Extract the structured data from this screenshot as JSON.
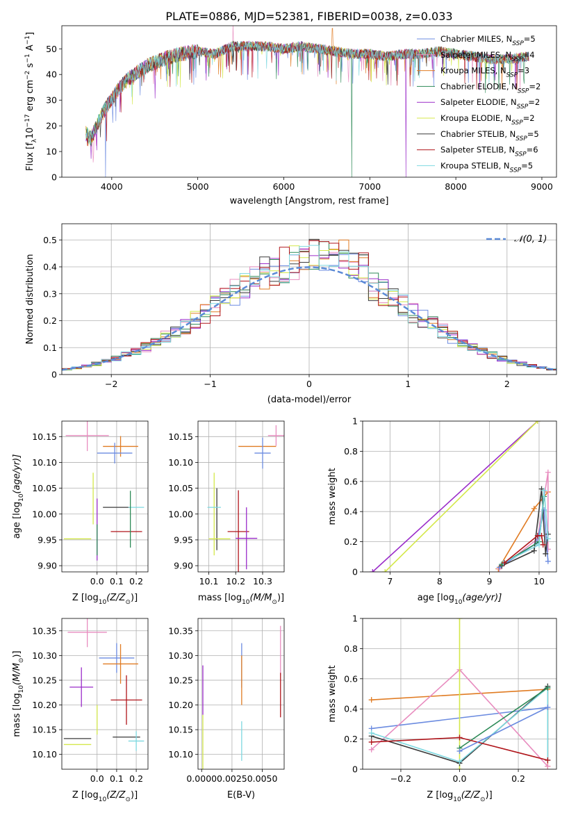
{
  "figure_title": "PLATE=0886, MJD=52381, FIBERID=0038, z=0.033",
  "colors": {
    "chabrier_miles": "#6b8be0",
    "salpeter_miles": "#e88cbf",
    "kroupa_miles": "#e07b22",
    "chabrier_elodie": "#2d8a57",
    "salpeter_elodie": "#9a2bc9",
    "kroupa_elodie": "#d4e84a",
    "chabrier_stelib": "#3a3a3a",
    "salpeter_stelib": "#b0151b",
    "kroupa_stelib": "#7dd8e0",
    "normal": "#5b8ad6",
    "grid": "#b0b0b0"
  },
  "chart_data": [
    {
      "id": "spectrum",
      "type": "line",
      "title": "PLATE=0886, MJD=52381, FIBERID=0038, z=0.033",
      "xlabel": "wavelength [Angstrom, rest frame]",
      "ylabel_main": "Flux [f",
      "ylabel_sub": "λ",
      "ylabel_rest": "10",
      "ylabel_exp1": "−17",
      "ylabel_mid": " erg cm",
      "ylabel_exp2": "−2",
      "ylabel_mid2": " s",
      "ylabel_exp3": "−1",
      "ylabel_end": " A",
      "ylabel_exp4": "−1",
      "ylabel_close": "]",
      "xlim": [
        3420,
        9170
      ],
      "ylim": [
        0,
        59
      ],
      "xticks": [
        4000,
        5000,
        6000,
        7000,
        8000,
        9000
      ],
      "yticks": [
        0,
        10,
        20,
        30,
        40,
        50
      ],
      "grid": false,
      "legend_position": "upper right",
      "continuum": [
        [
          3700,
          17
        ],
        [
          3760,
          15
        ],
        [
          3850,
          22
        ],
        [
          3950,
          28
        ],
        [
          4050,
          33
        ],
        [
          4150,
          37
        ],
        [
          4300,
          41
        ],
        [
          4450,
          44
        ],
        [
          4600,
          46
        ],
        [
          4800,
          48
        ],
        [
          5000,
          49
        ],
        [
          5200,
          48
        ],
        [
          5400,
          51
        ],
        [
          5600,
          51
        ],
        [
          5800,
          51
        ],
        [
          6000,
          50
        ],
        [
          6200,
          51
        ],
        [
          6400,
          50
        ],
        [
          6600,
          49
        ],
        [
          6800,
          48
        ],
        [
          7000,
          48
        ],
        [
          7200,
          47
        ],
        [
          7400,
          48
        ],
        [
          7600,
          48
        ],
        [
          7800,
          49
        ],
        [
          8000,
          48
        ],
        [
          8200,
          47
        ],
        [
          8400,
          46
        ],
        [
          8600,
          46
        ],
        [
          8850,
          47
        ]
      ],
      "spikes": [
        [
          3930,
          0
        ],
        [
          5410,
          60
        ],
        [
          6565,
          58
        ],
        [
          6790,
          0
        ],
        [
          7420,
          0
        ]
      ],
      "legend": [
        {
          "key": "chabrier_miles",
          "label": "Chabrier MILES, N",
          "sub": "SSP",
          "val": "=5"
        },
        {
          "key": "salpeter_miles",
          "label": "Salpeter MILES, N",
          "sub": "SSP",
          "val": "=4"
        },
        {
          "key": "kroupa_miles",
          "label": "Kroupa MILES, N",
          "sub": "SSP",
          "val": "=3"
        },
        {
          "key": "chabrier_elodie",
          "label": "Chabrier ELODIE, N",
          "sub": "SSP",
          "val": "=2"
        },
        {
          "key": "salpeter_elodie",
          "label": "Salpeter ELODIE, N",
          "sub": "SSP",
          "val": "=2"
        },
        {
          "key": "kroupa_elodie",
          "label": "Kroupa ELODIE, N",
          "sub": "SSP",
          "val": "=2"
        },
        {
          "key": "chabrier_stelib",
          "label": "Chabrier STELIB, N",
          "sub": "SSP",
          "val": "=5"
        },
        {
          "key": "salpeter_stelib",
          "label": "Salpeter STELIB, N",
          "sub": "SSP",
          "val": "=6"
        },
        {
          "key": "kroupa_stelib",
          "label": "Kroupa STELIB, N",
          "sub": "SSP",
          "val": "=5"
        }
      ]
    },
    {
      "id": "residuals",
      "type": "line",
      "xlabel": "(data-model)/error",
      "ylabel": "Normed distribution",
      "xlim": [
        -2.5,
        2.5
      ],
      "ylim": [
        0,
        0.56
      ],
      "xticks": [
        -2,
        -1,
        0,
        1,
        2
      ],
      "yticks": [
        0.0,
        0.1,
        0.2,
        0.3,
        0.4,
        0.5
      ],
      "grid": true,
      "legend_label": "𝒩(0, 1)",
      "legend_position": "upper right",
      "bin_width": 0.1,
      "bin_start": -2.5,
      "histogram_base": [
        0.02,
        0.025,
        0.03,
        0.035,
        0.04,
        0.045,
        0.05,
        0.06,
        0.07,
        0.08,
        0.09,
        0.1,
        0.11,
        0.12,
        0.14,
        0.16,
        0.18,
        0.2,
        0.22,
        0.25,
        0.28,
        0.3,
        0.32,
        0.34,
        0.36,
        0.38,
        0.4,
        0.42,
        0.43,
        0.44,
        0.45,
        0.46,
        0.45,
        0.44,
        0.42,
        0.4,
        0.38,
        0.36,
        0.34,
        0.32,
        0.3,
        0.28,
        0.26,
        0.24,
        0.22,
        0.2,
        0.18,
        0.16,
        0.14,
        0.12
      ],
      "histogram_tail": [
        0.1,
        0.08,
        0.065,
        0.05,
        0.04,
        0.035,
        0.03,
        0.025,
        0.02,
        0.02,
        0.02,
        0.02,
        0.02,
        0.02,
        0.02,
        0.02,
        0.02,
        0.02,
        0.02,
        0.02,
        0.02,
        0.02,
        0.02,
        0.02,
        0.02,
        0.02,
        0.02,
        0.02,
        0.02,
        0.02,
        0.02,
        0.02,
        0.02,
        0.02,
        0.02,
        0.02,
        0.02,
        0.02,
        0.02,
        0.02,
        0.02,
        0.02,
        0.02,
        0.02,
        0.02,
        0.02,
        0.02,
        0.02,
        0.02,
        0.02
      ]
    },
    {
      "id": "age_vs_Z",
      "type": "scatter",
      "xlabel": "Z [log",
      "xlabel_sub": "10",
      "xlabel_end": "(Z/Z",
      "xlabel_sun": "⊙",
      "xlabel_close": ")]",
      "ylabel": "age  [log",
      "ylabel_sub": "10",
      "ylabel_end": "(age/yr)]",
      "xlim": [
        -0.18,
        0.26
      ],
      "ylim": [
        9.888,
        10.18
      ],
      "xticks": [
        0.0,
        0.1,
        0.2
      ],
      "xticklabels": [
        "0.0",
        "0.1",
        "0.2"
      ],
      "yticks": [
        9.9,
        9.95,
        10.0,
        10.05,
        10.1,
        10.15
      ],
      "yticklabels": [
        "9.90",
        "9.95",
        "10.00",
        "10.05",
        "10.10",
        "10.15"
      ],
      "grid": true,
      "points": [
        {
          "key": "salpeter_miles",
          "x": -0.05,
          "xe": 0.11,
          "y": 10.152,
          "ye": 0.03
        },
        {
          "key": "kroupa_miles",
          "x": 0.12,
          "xe": 0.09,
          "y": 10.131,
          "ye": 0.02
        },
        {
          "key": "chabrier_miles",
          "x": 0.09,
          "xe": 0.09,
          "y": 10.118,
          "ye": 0.02
        },
        {
          "key": "kroupa_elodie",
          "x": -0.02,
          "xe": 0.0,
          "y": 10.03,
          "ye": 0.05
        },
        {
          "key": "salpeter_elodie",
          "x": 0.0,
          "xe": 0.0,
          "y": 9.97,
          "ye": 0.06
        },
        {
          "key": "chabrier_stelib",
          "x": 0.1,
          "xe": 0.07,
          "y": 10.013,
          "ye": 0.0
        },
        {
          "key": "kroupa_stelib",
          "x": 0.2,
          "xe": 0.04,
          "y": 10.013,
          "ye": 0.0
        },
        {
          "key": "salpeter_stelib",
          "x": 0.15,
          "xe": 0.08,
          "y": 9.966,
          "ye": 0.0
        },
        {
          "key": "chabrier_elodie",
          "x": 0.17,
          "xe": 0.0,
          "y": 9.99,
          "ye": 0.055
        },
        {
          "key": "kroupa_elodie",
          "x": -0.1,
          "xe": 0.07,
          "y": 9.952,
          "ye": 0.0
        },
        {
          "key": "chabrier_elodie",
          "x": 0.0,
          "xe": 0.0,
          "y": 9.95,
          "ye": 0.03
        }
      ]
    },
    {
      "id": "age_vs_mass",
      "type": "scatter",
      "xlabel": "mass [log",
      "xlabel_sub": "10",
      "xlabel_end": "(M/M",
      "xlabel_sun": "⊙",
      "xlabel_close": ")]",
      "xlim": [
        10.06,
        10.38
      ],
      "ylim": [
        9.888,
        10.18
      ],
      "xticks": [
        10.1,
        10.2,
        10.3
      ],
      "xticklabels": [
        "10.1",
        "10.2",
        "10.3"
      ],
      "yticks": [
        9.9,
        9.95,
        10.0,
        10.05,
        10.1,
        10.15
      ],
      "yticklabels": [
        "9.90",
        "9.95",
        "10.00",
        "10.05",
        "10.10",
        "10.15"
      ],
      "grid": true,
      "points": [
        {
          "key": "salpeter_miles",
          "x": 10.35,
          "xe": 0.03,
          "y": 10.152,
          "ye": 0.02
        },
        {
          "key": "kroupa_miles",
          "x": 10.28,
          "xe": 0.07,
          "y": 10.131,
          "ye": 0.0
        },
        {
          "key": "chabrier_miles",
          "x": 10.3,
          "xe": 0.03,
          "y": 10.118,
          "ye": 0.03
        },
        {
          "key": "kroupa_elodie",
          "x": 10.12,
          "xe": 0.0,
          "y": 10.0,
          "ye": 0.08
        },
        {
          "key": "chabrier_stelib",
          "x": 10.13,
          "xe": 0.0,
          "y": 9.99,
          "ye": 0.06
        },
        {
          "key": "kroupa_stelib",
          "x": 10.12,
          "xe": 0.025,
          "y": 10.013,
          "ye": 0.0
        },
        {
          "key": "salpeter_stelib",
          "x": 10.21,
          "xe": 0.04,
          "y": 9.966,
          "ye": 0.08
        },
        {
          "key": "salpeter_elodie",
          "x": 10.24,
          "xe": 0.04,
          "y": 9.953,
          "ye": 0.06
        },
        {
          "key": "kroupa_elodie",
          "x": 10.14,
          "xe": 0.04,
          "y": 9.952,
          "ye": 0.0
        }
      ]
    },
    {
      "id": "massweight_vs_age",
      "type": "line",
      "xlabel": "age  [log",
      "xlabel_sub": "10",
      "xlabel_end": "(age/yr)]",
      "ylabel": "mass weight",
      "xlim": [
        6.45,
        10.35
      ],
      "ylim": [
        0,
        1
      ],
      "xticks": [
        7,
        8,
        9,
        10
      ],
      "yticks": [
        0.0,
        0.2,
        0.4,
        0.6,
        0.8,
        1.0
      ],
      "grid": true,
      "series": [
        {
          "key": "salpeter_elodie",
          "x": [
            6.65,
            9.97
          ],
          "y": [
            0,
            1.0
          ]
        },
        {
          "key": "kroupa_elodie",
          "x": [
            6.9,
            9.97
          ],
          "y": [
            0,
            1.0
          ]
        },
        {
          "key": "kroupa_miles",
          "x": [
            9.18,
            9.9,
            10.18
          ],
          "y": [
            0.02,
            0.42,
            0.53
          ]
        },
        {
          "key": "salpeter_miles",
          "x": [
            9.2,
            9.97,
            10.18,
            10.18
          ],
          "y": [
            0.02,
            0.22,
            0.66,
            0.15
          ]
        },
        {
          "key": "chabrier_miles",
          "x": [
            9.2,
            9.95,
            10.1,
            10.18
          ],
          "y": [
            0.03,
            0.19,
            0.41,
            0.07
          ]
        },
        {
          "key": "chabrier_stelib",
          "x": [
            9.25,
            9.9,
            10.05,
            10.13,
            10.18
          ],
          "y": [
            0.04,
            0.14,
            0.55,
            0.12,
            0.25
          ]
        },
        {
          "key": "chabrier_elodie",
          "x": [
            9.25,
            10.0,
            10.1
          ],
          "y": [
            0.05,
            0.2,
            0.5
          ]
        },
        {
          "key": "kroupa_stelib",
          "x": [
            9.28,
            10.0,
            10.1,
            10.18
          ],
          "y": [
            0.06,
            0.18,
            0.54,
            0.22
          ]
        },
        {
          "key": "salpeter_stelib",
          "x": [
            9.3,
            9.97,
            10.05,
            10.08
          ],
          "y": [
            0.06,
            0.24,
            0.24,
            0.18
          ]
        }
      ]
    },
    {
      "id": "mass_vs_Z",
      "type": "scatter",
      "xlabel": "Z [log",
      "xlabel_sub": "10",
      "xlabel_end": "(Z/Z",
      "xlabel_sun": "⊙",
      "xlabel_close": ")]",
      "ylabel": "mass [log",
      "ylabel_sub": "10",
      "ylabel_end": "(M/M",
      "ylabel_sun": "⊙",
      "ylabel_close": ")]",
      "xlim": [
        -0.18,
        0.26
      ],
      "ylim": [
        10.07,
        10.375
      ],
      "xticks": [
        0.0,
        0.1,
        0.2
      ],
      "xticklabels": [
        "0.0",
        "0.1",
        "0.2"
      ],
      "yticks": [
        10.1,
        10.15,
        10.2,
        10.25,
        10.3,
        10.35
      ],
      "yticklabels": [
        "10.10",
        "10.15",
        "10.20",
        "10.25",
        "10.30",
        "10.35"
      ],
      "grid": true,
      "points": [
        {
          "key": "salpeter_miles",
          "x": -0.05,
          "xe": 0.1,
          "y": 10.347,
          "ye": 0.03
        },
        {
          "key": "chabrier_miles",
          "x": 0.1,
          "xe": 0.09,
          "y": 10.295,
          "ye": 0.03
        },
        {
          "key": "kroupa_miles",
          "x": 0.12,
          "xe": 0.09,
          "y": 10.283,
          "ye": 0.04
        },
        {
          "key": "salpeter_elodie",
          "x": -0.08,
          "xe": 0.06,
          "y": 10.236,
          "ye": 0.04
        },
        {
          "key": "salpeter_stelib",
          "x": 0.15,
          "xe": 0.08,
          "y": 10.21,
          "ye": 0.05
        },
        {
          "key": "kroupa_elodie",
          "x": 0.0,
          "xe": 0.0,
          "y": 10.17,
          "ye": 0.03
        },
        {
          "key": "chabrier_stelib",
          "x": -0.1,
          "xe": 0.07,
          "y": 10.132,
          "ye": 0.0
        },
        {
          "key": "chabrier_stelib",
          "x": 0.15,
          "xe": 0.07,
          "y": 10.135,
          "ye": 0.0
        },
        {
          "key": "kroupa_elodie",
          "x": -0.1,
          "xe": 0.07,
          "y": 10.12,
          "ye": 0.0
        },
        {
          "key": "kroupa_stelib",
          "x": 0.2,
          "xe": 0.04,
          "y": 10.127,
          "ye": 0.02
        }
      ]
    },
    {
      "id": "mass_vs_ebv",
      "type": "scatter",
      "xlabel": "E(B-V)",
      "xlim": [
        -0.0003,
        0.0068
      ],
      "ylim": [
        10.07,
        10.375
      ],
      "xticks": [
        0.0,
        0.0025,
        0.005
      ],
      "xticklabels": [
        "0.0000",
        "0.0025",
        "0.0050"
      ],
      "yticks": [
        10.1,
        10.15,
        10.2,
        10.25,
        10.3,
        10.35
      ],
      "yticklabels": [
        "10.10",
        "10.15",
        "10.20",
        "10.25",
        "10.30",
        "10.35"
      ],
      "grid": true,
      "points": [
        {
          "key": "salpeter_elodie",
          "x": 0.0001,
          "xe": 0.0,
          "y": 10.23,
          "ye": 0.05
        },
        {
          "key": "kroupa_elodie",
          "x": 0.0001,
          "xe": 0.0,
          "y": 10.12,
          "ye": 0.06
        },
        {
          "key": "chabrier_miles",
          "x": 0.0033,
          "xe": 0.0,
          "y": 10.28,
          "ye": 0.045
        },
        {
          "key": "kroupa_miles",
          "x": 0.0033,
          "xe": 0.0,
          "y": 10.25,
          "ye": 0.05
        },
        {
          "key": "kroupa_stelib",
          "x": 0.0033,
          "xe": 0.0,
          "y": 10.127,
          "ye": 0.04
        },
        {
          "key": "salpeter_miles",
          "x": 0.0065,
          "xe": 0.0,
          "y": 10.31,
          "ye": 0.05
        },
        {
          "key": "salpeter_stelib",
          "x": 0.0065,
          "xe": 0.0,
          "y": 10.22,
          "ye": 0.045
        }
      ]
    },
    {
      "id": "massweight_vs_Z",
      "type": "line",
      "xlabel": "Z [log",
      "xlabel_sub": "10",
      "xlabel_end": "(Z/Z",
      "xlabel_sun": "⊙",
      "xlabel_close": ")]",
      "ylabel": "mass weight",
      "xlim": [
        -0.33,
        0.33
      ],
      "ylim": [
        0,
        1
      ],
      "xticks": [
        -0.2,
        0.0,
        0.2
      ],
      "xticklabels": [
        "−0.2",
        "0.0",
        "0.2"
      ],
      "yticks": [
        0.0,
        0.2,
        0.4,
        0.6,
        0.8,
        1.0
      ],
      "grid": true,
      "series": [
        {
          "key": "kroupa_miles",
          "x": [
            -0.3,
            0.3,
            0.3
          ],
          "y": [
            0.46,
            0.53,
            0.02
          ]
        },
        {
          "key": "chabrier_miles",
          "x": [
            -0.3,
            0.3
          ],
          "y": [
            0.27,
            0.41
          ]
        },
        {
          "key": "salpeter_miles",
          "x": [
            -0.3,
            0.0,
            0.3
          ],
          "y": [
            0.13,
            0.66,
            0.02
          ]
        },
        {
          "key": "kroupa_elodie",
          "x": [
            0.0,
            0.0
          ],
          "y": [
            0.0,
            1.0
          ]
        },
        {
          "key": "chabrier_stelib",
          "x": [
            -0.3,
            0.0,
            0.3,
            0.3
          ],
          "y": [
            0.22,
            0.04,
            0.55,
            0.06
          ]
        },
        {
          "key": "kroupa_stelib",
          "x": [
            -0.3,
            0.0,
            0.3,
            0.3
          ],
          "y": [
            0.24,
            0.05,
            0.54,
            0.06
          ]
        },
        {
          "key": "chabrier_elodie",
          "x": [
            0.0,
            0.3
          ],
          "y": [
            0.14,
            0.54
          ]
        },
        {
          "key": "salpeter_stelib",
          "x": [
            -0.3,
            0.0,
            0.3
          ],
          "y": [
            0.18,
            0.21,
            0.06
          ]
        },
        {
          "key": "chabrier_miles",
          "x": [
            0.0,
            0.3
          ],
          "y": [
            0.12,
            0.41
          ]
        }
      ]
    }
  ]
}
